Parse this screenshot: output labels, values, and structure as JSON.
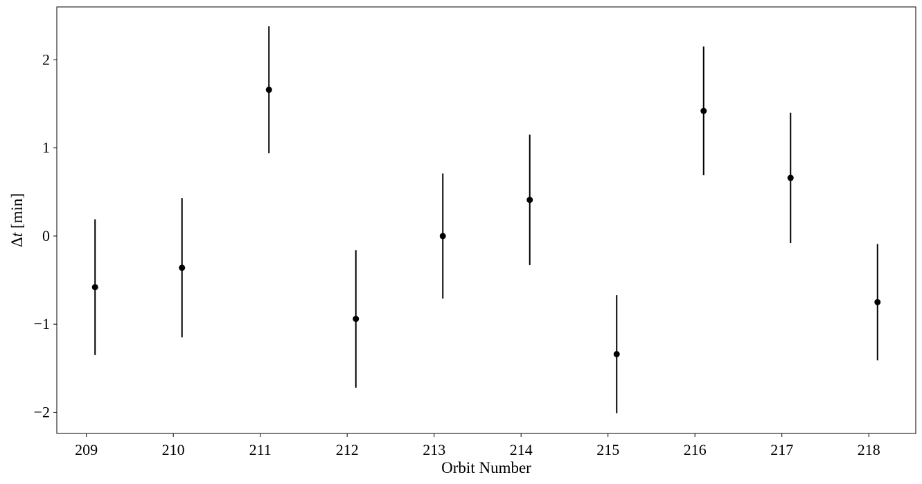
{
  "chart_data": {
    "type": "scatter",
    "title": "",
    "xlabel": "Orbit Number",
    "ylabel_symbol": "Δ",
    "ylabel_var": "t",
    "ylabel_unit": " [min]",
    "xlim": [
      208.66,
      218.54
    ],
    "ylim": [
      -2.24,
      2.6
    ],
    "xticks": [
      209,
      210,
      211,
      212,
      213,
      214,
      215,
      216,
      217,
      218
    ],
    "xtick_labels": [
      "209",
      "210",
      "211",
      "212",
      "213",
      "214",
      "215",
      "216",
      "217",
      "218"
    ],
    "yticks": [
      -2,
      -1,
      0,
      1,
      2
    ],
    "ytick_labels": [
      "−2",
      "−1",
      "0",
      "1",
      "2"
    ],
    "grid": false,
    "marker_color": "#000000",
    "series": [
      {
        "points": [
          {
            "x": 209.1,
            "y": -0.58,
            "err_low": 0.77,
            "err_high": 0.77
          },
          {
            "x": 210.1,
            "y": -0.36,
            "err_low": 0.79,
            "err_high": 0.79
          },
          {
            "x": 211.1,
            "y": 1.66,
            "err_low": 0.72,
            "err_high": 0.72
          },
          {
            "x": 212.1,
            "y": -0.94,
            "err_low": 0.78,
            "err_high": 0.78
          },
          {
            "x": 213.1,
            "y": 0.0,
            "err_low": 0.71,
            "err_high": 0.71
          },
          {
            "x": 214.1,
            "y": 0.41,
            "err_low": 0.74,
            "err_high": 0.74
          },
          {
            "x": 215.1,
            "y": -1.34,
            "err_low": 0.67,
            "err_high": 0.67
          },
          {
            "x": 216.1,
            "y": 1.42,
            "err_low": 0.73,
            "err_high": 0.73
          },
          {
            "x": 217.1,
            "y": 0.66,
            "err_low": 0.74,
            "err_high": 0.74
          },
          {
            "x": 218.1,
            "y": -0.75,
            "err_low": 0.66,
            "err_high": 0.66
          }
        ]
      }
    ]
  }
}
